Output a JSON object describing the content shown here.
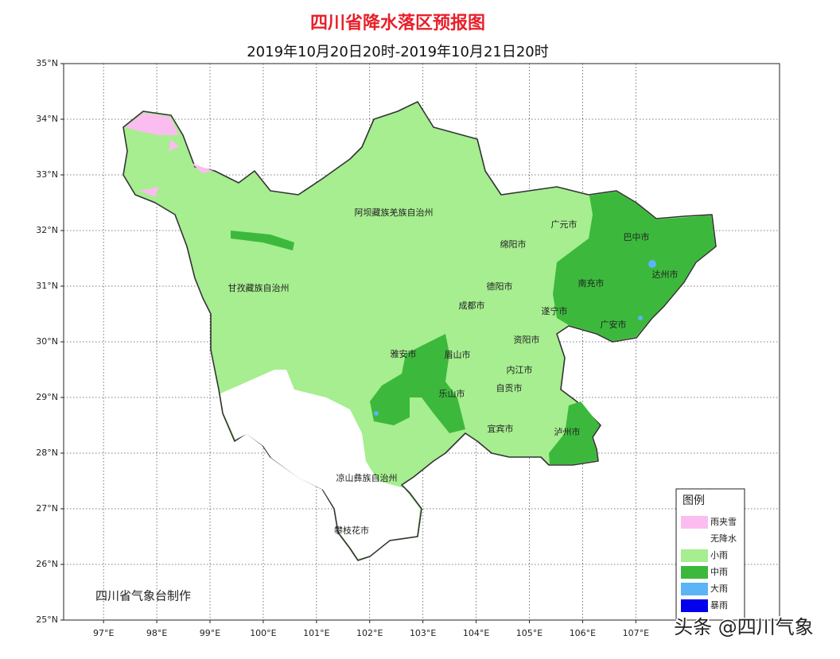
{
  "map": {
    "title": "四川省降水落区预报图",
    "subtitle": "2019年10月20日20时-2019年10月21日20时",
    "xlim": [
      96.25,
      109.7
    ],
    "ylim": [
      25,
      35
    ],
    "xticks": [
      {
        "value": 97,
        "label": "97°E"
      },
      {
        "value": 98,
        "label": "98°E"
      },
      {
        "value": 99,
        "label": "99°E"
      },
      {
        "value": 100,
        "label": "100°E"
      },
      {
        "value": 101,
        "label": "101°E"
      },
      {
        "value": 102,
        "label": "102°E"
      },
      {
        "value": 103,
        "label": "103°E"
      },
      {
        "value": 104,
        "label": "104°E"
      },
      {
        "value": 105,
        "label": "105°E"
      },
      {
        "value": 106,
        "label": "106°E"
      },
      {
        "value": 107,
        "label": "107°E"
      }
    ],
    "yticks": [
      {
        "value": 25,
        "label": "25°N"
      },
      {
        "value": 26,
        "label": "26°N"
      },
      {
        "value": 27,
        "label": "27°N"
      },
      {
        "value": 28,
        "label": "28°N"
      },
      {
        "value": 29,
        "label": "29°N"
      },
      {
        "value": 30,
        "label": "30°N"
      },
      {
        "value": 31,
        "label": "31°N"
      },
      {
        "value": 32,
        "label": "32°N"
      },
      {
        "value": 33,
        "label": "33°N"
      },
      {
        "value": 34,
        "label": "34°N"
      },
      {
        "value": 35,
        "label": "35°N"
      }
    ],
    "places": [
      "阿坝藏族羌族自治州",
      "甘孜藏族自治州",
      "广元市",
      "巴中市",
      "绵阳市",
      "达州市",
      "南充市",
      "德阳市",
      "成都市",
      "遂宁市",
      "广安市",
      "资阳市",
      "雅安市",
      "眉山市",
      "内江市",
      "自贡市",
      "乐山市",
      "宜宾市",
      "泸州市",
      "凉山彝族自治州",
      "攀枝花市"
    ],
    "legend": {
      "title": "图例",
      "items": [
        {
          "label": "雨夹雪",
          "color": "#fbbdef"
        },
        {
          "label": "无降水",
          "color": "#ffffff"
        },
        {
          "label": "小雨",
          "color": "#a6ee90"
        },
        {
          "label": "中雨",
          "color": "#3cb93c"
        },
        {
          "label": "大雨",
          "color": "#5ab4f5"
        },
        {
          "label": "暴雨",
          "color": "#0000ee"
        }
      ]
    },
    "credit": "四川省气象台制作",
    "watermark": "头条 @四川气象"
  }
}
